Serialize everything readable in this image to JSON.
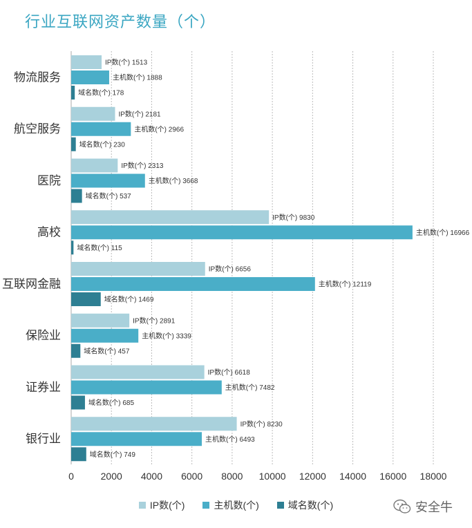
{
  "chart_data": {
    "type": "bar",
    "orientation": "horizontal",
    "title": "行业互联网资产数量（个）",
    "xlabel": "",
    "ylabel": "",
    "xlim": [
      0,
      18000
    ],
    "xticks": [
      0,
      2000,
      4000,
      6000,
      8000,
      10000,
      12000,
      14000,
      16000,
      18000
    ],
    "grid": "vertical dotted",
    "legend_position": "bottom",
    "categories": [
      "物流服务",
      "航空服务",
      "医院",
      "高校",
      "互联网金融",
      "保险业",
      "证券业",
      "银行业"
    ],
    "series": [
      {
        "name": "IP数(个)",
        "color": "#a9d1dc",
        "values": [
          1513,
          2181,
          2313,
          9830,
          6656,
          2891,
          6618,
          8230
        ]
      },
      {
        "name": "主机数(个)",
        "color": "#4aaec8",
        "values": [
          1888,
          2966,
          3668,
          16966,
          12119,
          3339,
          7482,
          6493
        ]
      },
      {
        "name": "域名数(个)",
        "color": "#2e7f93",
        "values": [
          178,
          230,
          537,
          115,
          1469,
          457,
          685,
          749
        ]
      }
    ]
  },
  "watermark": {
    "text": "安全牛",
    "icon": "wechat-icon"
  }
}
